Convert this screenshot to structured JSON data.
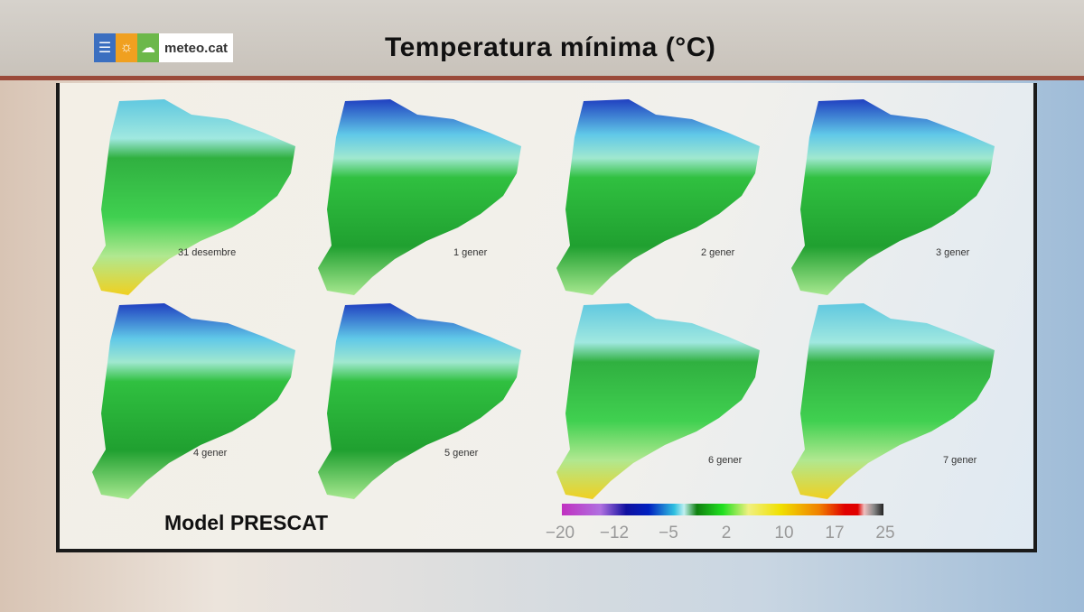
{
  "header": {
    "logo_text": "meteo.cat",
    "title": "Temperatura mínima (°C)"
  },
  "maps": [
    {
      "label": "31 desembre"
    },
    {
      "label": "1 gener"
    },
    {
      "label": "2 gener"
    },
    {
      "label": "3 gener"
    },
    {
      "label": "4 gener"
    },
    {
      "label": "5 gener"
    },
    {
      "label": "6 gener"
    },
    {
      "label": "7 gener"
    }
  ],
  "footer": {
    "model": "Model PRESCAT"
  },
  "colorbar": {
    "ticks": [
      "−20",
      "−12",
      "−5",
      "2",
      "10",
      "17",
      "25"
    ],
    "colors": [
      "#c030c0",
      "#1010a0",
      "#30c0e0",
      "#20e020",
      "#f0e000",
      "#e00000",
      "#222222"
    ]
  }
}
